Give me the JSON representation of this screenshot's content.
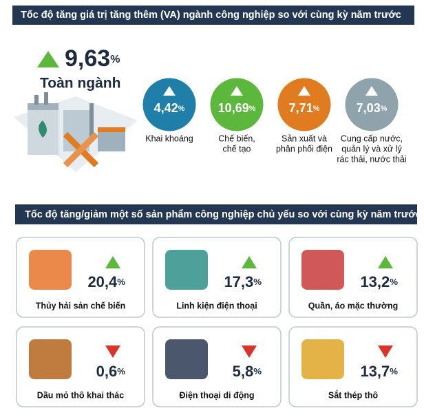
{
  "header": {
    "title": "Tốc độ tăng giá trị tăng thêm (VA) ngành công nghiệp so với cùng kỳ năm trước"
  },
  "overall": {
    "value": "9,63",
    "unit": "%",
    "label": "Toàn ngành"
  },
  "sectors": [
    {
      "value": "4,42",
      "unit": "%",
      "color": "#1f7fa8",
      "label_lines": [
        "Khai khoáng"
      ]
    },
    {
      "value": "10,69",
      "unit": "%",
      "color": "#5cb83c",
      "label_lines": [
        "Chế biến,",
        "chế tạo"
      ]
    },
    {
      "value": "7,71",
      "unit": "%",
      "color": "#e07b1f",
      "label_lines": [
        "Sản xuất và",
        "phân phối điện"
      ]
    },
    {
      "value": "7,03",
      "unit": "%",
      "color": "#8fa3ad",
      "label_lines": [
        "Cung cấp nước,",
        "quản lý và xử lý",
        "rác thải, nước thải"
      ]
    }
  ],
  "products_header": {
    "title": "Tốc độ tăng/giảm một số sản phẩm công nghiệp chủ yếu so với cùng kỳ năm trước"
  },
  "products": [
    {
      "value": "20,4",
      "unit": "%",
      "direction": "up",
      "label": "Thủy hải sản chế biến"
    },
    {
      "value": "17,3",
      "unit": "%",
      "direction": "up",
      "label": "Linh kiện điện thoại"
    },
    {
      "value": "13,2",
      "unit": "%",
      "direction": "up",
      "label": "Quần, áo mặc thường"
    },
    {
      "value": "0,6",
      "unit": "%",
      "direction": "down",
      "label": "Dầu mỏ thô khai thác"
    },
    {
      "value": "5,8",
      "unit": "%",
      "direction": "down",
      "label": "Điện thoại di động"
    },
    {
      "value": "13,7",
      "unit": "%",
      "direction": "down",
      "label": "Sắt thép thô"
    }
  ]
}
